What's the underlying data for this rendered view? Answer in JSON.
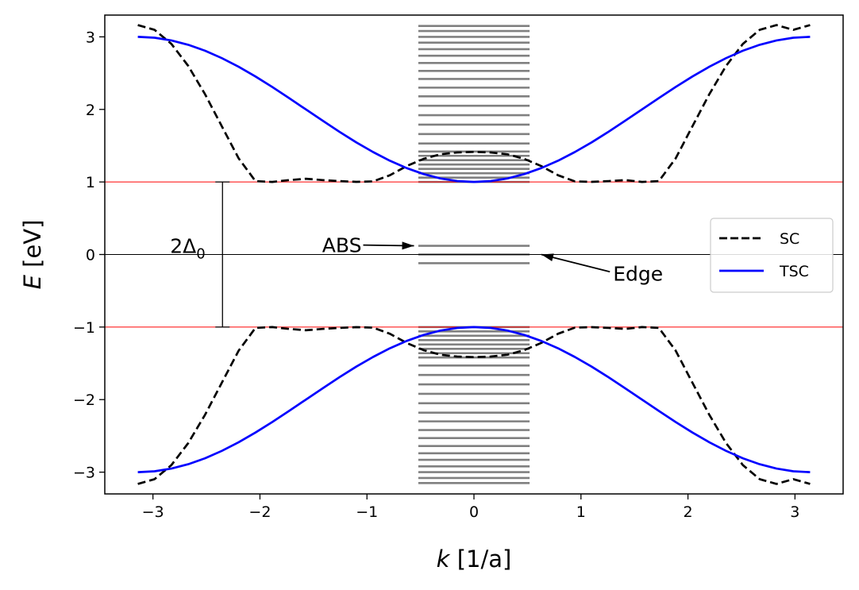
{
  "chart_data": {
    "type": "line",
    "xlabel_var": "k",
    "xlabel_unit": "[1/a]",
    "ylabel_var": "E",
    "ylabel_unit": "[eV]",
    "xlim": [
      -3.45,
      3.45
    ],
    "ylim": [
      -3.3,
      3.3
    ],
    "xticks": [
      -3,
      -2,
      -1,
      0,
      1,
      2,
      3
    ],
    "xtick_labels": [
      "−3",
      "−2",
      "−1",
      "0",
      "1",
      "2",
      "3"
    ],
    "yticks": [
      -3,
      -2,
      -1,
      0,
      1,
      2,
      3
    ],
    "ytick_labels": [
      "−3",
      "−2",
      "−1",
      "0",
      "1",
      "2",
      "3"
    ],
    "grid": false,
    "legend_position": "center-right",
    "series": [
      {
        "name": "SC",
        "color": "#000000",
        "style": "dashed",
        "x": [
          -3.1416,
          -2.9845,
          -2.8274,
          -2.6704,
          -2.5133,
          -2.3562,
          -2.1991,
          -2.042,
          -1.885,
          -1.7279,
          -1.5708,
          -1.4137,
          -1.2566,
          -1.0996,
          -0.9425,
          -0.7854,
          -0.6283,
          -0.4712,
          -0.3142,
          -0.1571,
          0.0,
          0.1571,
          0.3142,
          0.4712,
          0.6283,
          0.7854,
          0.9425,
          1.0996,
          1.2566,
          1.4137,
          1.5708,
          1.7279,
          1.885,
          2.042,
          2.1991,
          2.3562,
          2.5133,
          2.6704,
          2.8274,
          2.9845,
          3.1416
        ],
        "upper": [
          3.162,
          3.096,
          2.903,
          2.599,
          2.209,
          1.768,
          1.325,
          1.011,
          1.0,
          1.026,
          1.044,
          1.026,
          1.011,
          1.001,
          1.008,
          1.092,
          1.219,
          1.318,
          1.381,
          1.407,
          1.414,
          1.407,
          1.381,
          1.318,
          1.219,
          1.092,
          1.008,
          1.001,
          1.011,
          1.026,
          1.0,
          1.011,
          1.325,
          1.768,
          2.209,
          2.599,
          2.903,
          3.096,
          3.162,
          3.096,
          3.162
        ],
        "lower": [
          -3.162,
          -3.096,
          -2.903,
          -2.599,
          -2.209,
          -1.768,
          -1.325,
          -1.011,
          -1.0,
          -1.026,
          -1.044,
          -1.026,
          -1.011,
          -1.001,
          -1.008,
          -1.092,
          -1.219,
          -1.318,
          -1.381,
          -1.407,
          -1.414,
          -1.407,
          -1.381,
          -1.318,
          -1.219,
          -1.092,
          -1.008,
          -1.001,
          -1.011,
          -1.026,
          -1.0,
          -1.011,
          -1.325,
          -1.768,
          -2.209,
          -2.599,
          -2.903,
          -3.096,
          -3.162,
          -3.096,
          -3.162
        ]
      },
      {
        "name": "TSC",
        "color": "#0000ff",
        "style": "solid",
        "x": [
          -3.1416,
          -2.9845,
          -2.8274,
          -2.6704,
          -2.5133,
          -2.3562,
          -2.1991,
          -2.042,
          -1.885,
          -1.7279,
          -1.5708,
          -1.4137,
          -1.2566,
          -1.0996,
          -0.9425,
          -0.7854,
          -0.6283,
          -0.4712,
          -0.3142,
          -0.1571,
          0.0,
          0.1571,
          0.3142,
          0.4712,
          0.6283,
          0.7854,
          0.9425,
          1.0996,
          1.2566,
          1.4137,
          1.5708,
          1.7279,
          1.885,
          2.042,
          2.1991,
          2.3562,
          2.5133,
          2.6704,
          2.8274,
          2.9845,
          3.1416
        ],
        "upper": [
          3.0,
          2.988,
          2.951,
          2.891,
          2.809,
          2.707,
          2.588,
          2.454,
          2.309,
          2.156,
          2.0,
          1.844,
          1.691,
          1.546,
          1.412,
          1.293,
          1.191,
          1.109,
          1.049,
          1.012,
          1.0,
          1.012,
          1.049,
          1.109,
          1.191,
          1.293,
          1.412,
          1.546,
          1.691,
          1.844,
          2.0,
          2.156,
          2.309,
          2.454,
          2.588,
          2.707,
          2.809,
          2.891,
          2.951,
          2.988,
          3.0
        ],
        "lower": [
          -3.0,
          -2.988,
          -2.951,
          -2.891,
          -2.809,
          -2.707,
          -2.588,
          -2.454,
          -2.309,
          -2.156,
          -2.0,
          -1.844,
          -1.691,
          -1.546,
          -1.412,
          -1.293,
          -1.191,
          -1.109,
          -1.049,
          -1.012,
          -1.0,
          -1.012,
          -1.049,
          -1.109,
          -1.191,
          -1.293,
          -1.412,
          -1.546,
          -1.691,
          -1.844,
          -2.0,
          -2.156,
          -2.309,
          -2.454,
          -2.588,
          -2.707,
          -2.809,
          -2.891,
          -2.951,
          -2.988,
          -3.0
        ]
      }
    ],
    "finite_spectrum": {
      "color": "#808080",
      "x_range": [
        -0.52,
        0.52
      ],
      "levels": [
        3.15,
        3.08,
        3.0,
        2.92,
        2.83,
        2.74,
        2.64,
        2.53,
        2.42,
        2.3,
        2.18,
        2.05,
        1.92,
        1.79,
        1.66,
        1.53,
        1.42,
        1.36,
        1.3,
        1.24,
        1.18,
        1.12,
        1.06,
        1.0,
        0.12,
        0.0,
        -0.12,
        -1.0,
        -1.06,
        -1.12,
        -1.18,
        -1.24,
        -1.3,
        -1.36,
        -1.42,
        -1.53,
        -1.66,
        -1.79,
        -1.92,
        -2.05,
        -2.18,
        -2.3,
        -2.42,
        -2.53,
        -2.64,
        -2.74,
        -2.83,
        -2.92,
        -3.0,
        -3.08,
        -3.15
      ]
    },
    "reference_lines": [
      {
        "y": 1.0,
        "color": "#ff0000"
      },
      {
        "y": -1.0,
        "color": "#ff0000"
      },
      {
        "y": 0.0,
        "color": "#000000"
      }
    ],
    "gap_bar": {
      "x": -2.35,
      "y_min": -1.0,
      "y_max": 1.0,
      "label": "2Δ",
      "label_sub": "0"
    },
    "annotations": [
      {
        "text": "ABS",
        "text_xy": [
          -1.05,
          0.13
        ],
        "arrow_to": [
          -0.56,
          0.12
        ]
      },
      {
        "text": "Edge",
        "text_xy": [
          1.3,
          -0.26
        ],
        "arrow_to": [
          0.63,
          0.0
        ]
      }
    ]
  }
}
